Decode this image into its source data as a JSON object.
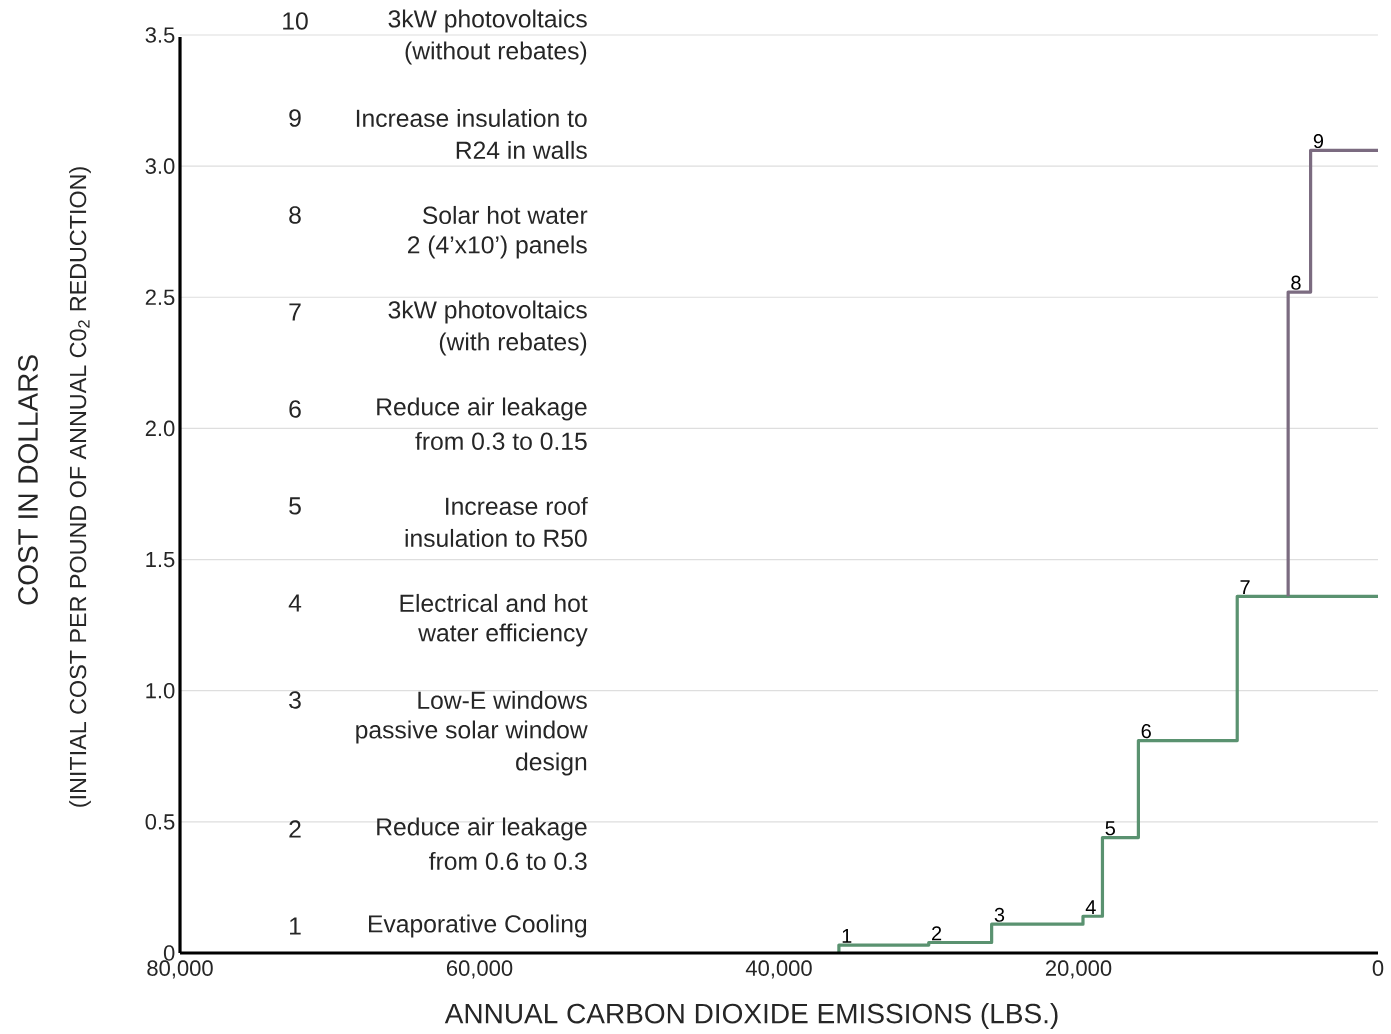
{
  "chart_data": {
    "type": "step",
    "xlabel": "ANNUAL CARBON DIOXIDE EMISSIONS (LBS.)",
    "ylabel": "COST IN DOLLARS",
    "xlim": [
      80000,
      0
    ],
    "xticks": [
      {
        "value": 80000,
        "label": "80,000"
      },
      {
        "value": 60000,
        "label": "60,000"
      },
      {
        "value": 40000,
        "label": "40,000"
      },
      {
        "value": 20000,
        "label": "20,000"
      },
      0
    ],
    "ylim": [
      0,
      3.5
    ],
    "yticks": [
      0,
      0.5,
      {
        "value": 1,
        "label": "1.0"
      },
      1.5,
      {
        "value": 2,
        "label": "2.0"
      },
      2.5,
      {
        "value": 3,
        "label": "3.0"
      },
      3.5
    ],
    "grid": "y",
    "series": [
      {
        "color": "#5a9270",
        "x": [
          36000,
          30000,
          25800,
          19700,
          18400,
          16000,
          9400,
          0
        ],
        "values": [
          0,
          0.03,
          0.04,
          0.11,
          0.14,
          0.44,
          0.81,
          1.36
        ]
      },
      {
        "color": "#7b6b80",
        "x": [
          6000,
          4500,
          0
        ],
        "values": [
          1.36,
          2.52,
          3.06
        ]
      }
    ],
    "annotations": [
      "(INITIAL COST PER POUND OF ANNUAL C0$_{2}$ REDUCTION)",
      "10",
      "3kW photovoltaics",
      "(without rebates)",
      "9",
      "Increase insulation to",
      "R24 in walls",
      "8",
      "Solar hot water",
      "2 (4’x10’) panels",
      "7",
      "3kW photovoltaics",
      "(with rebates)",
      "6",
      "Reduce air leakage",
      "from 0.3 to 0.15",
      "5",
      "Increase roof",
      "insulation to R50",
      "4",
      "Electrical and hot",
      "water efficiency",
      "3",
      "Low-E windows",
      "passive solar window",
      "design",
      "2",
      "Reduce air leakage",
      "from 0.6 to 0.3",
      "1",
      "Evaporative Cooling",
      {
        "text": "1",
        "x": 36000,
        "y": 0.03
      },
      {
        "text": "2",
        "x": 30000,
        "y": 0.04
      },
      {
        "text": "3",
        "x": 25800,
        "y": 0.11
      },
      {
        "text": "4",
        "x": 19700,
        "y": 0.14
      },
      {
        "text": "5",
        "x": 18400,
        "y": 0.44
      },
      {
        "text": "6",
        "x": 16000,
        "y": 0.81
      },
      {
        "text": "7",
        "x": 9400,
        "y": 1.36
      },
      {
        "text": "8",
        "x": 6000,
        "y": 2.52
      },
      {
        "text": "9",
        "x": 4500,
        "y": 3.06
      }
    ]
  }
}
